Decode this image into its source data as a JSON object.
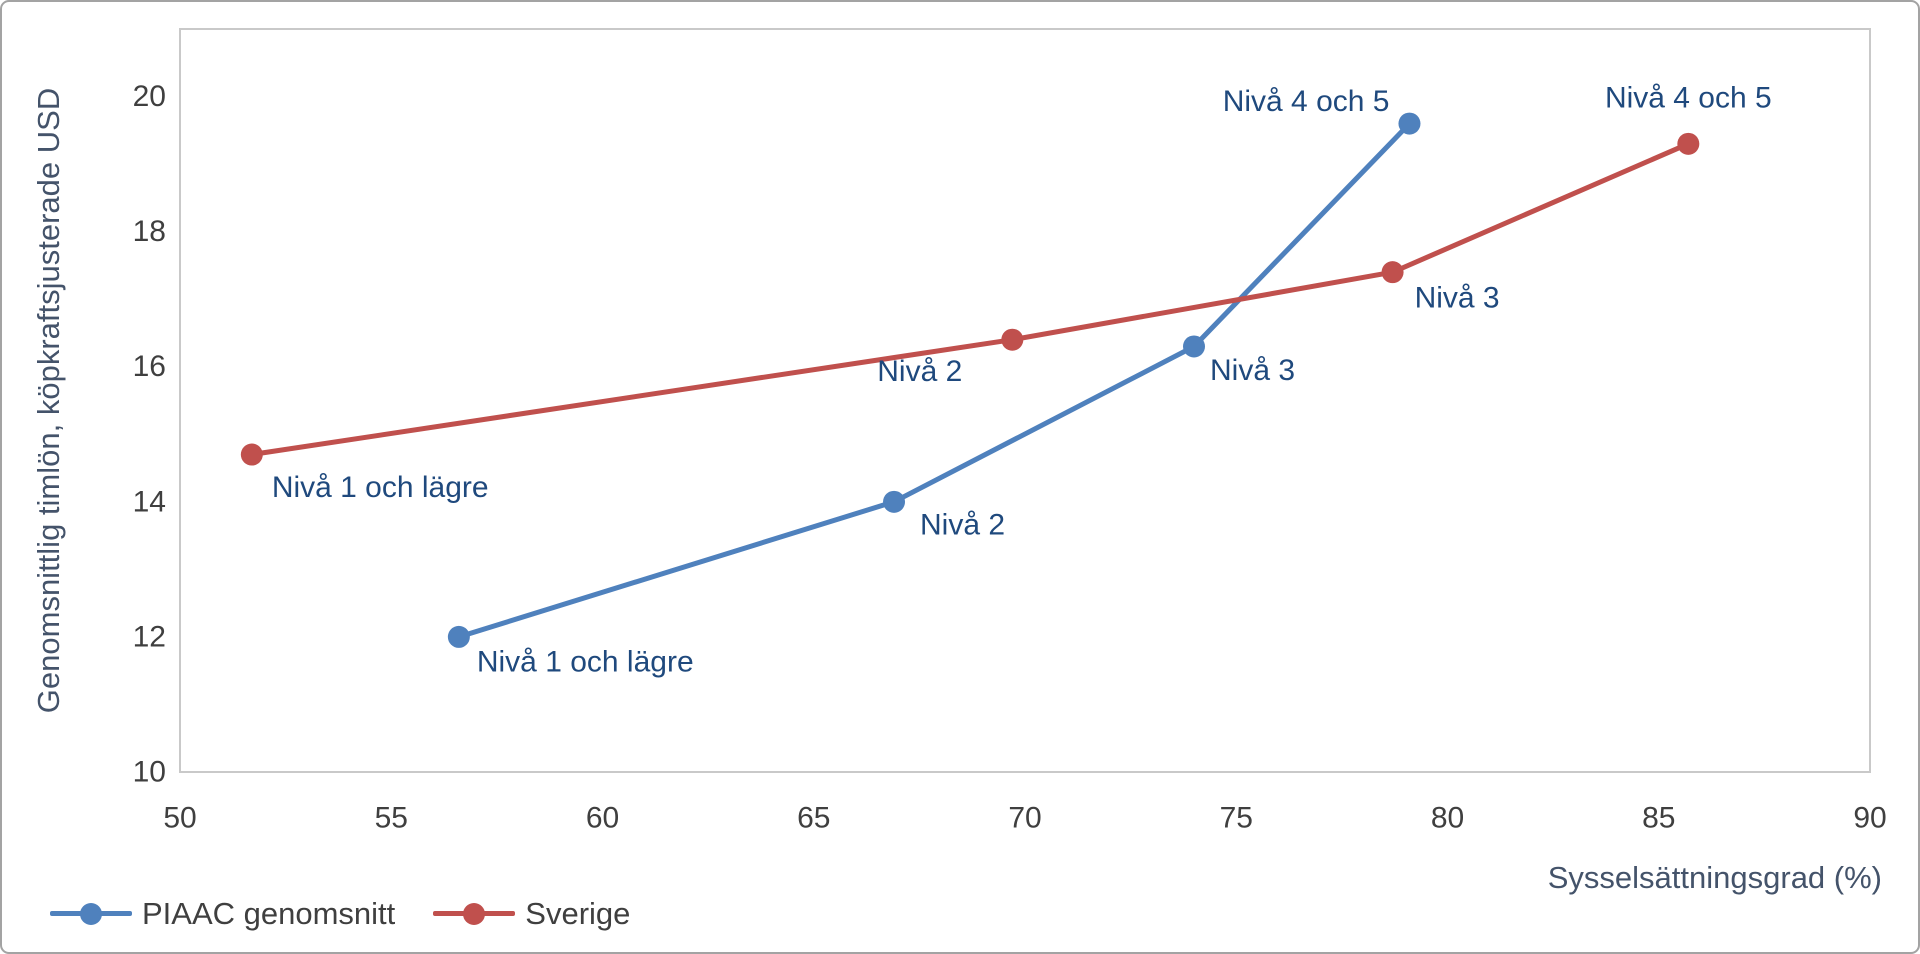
{
  "window": {
    "background": "#ffffff",
    "border_color": "#a3a3a3"
  },
  "chart_data": {
    "type": "line",
    "title": "",
    "xlabel": "Sysselsättningsgrad (%)",
    "ylabel": "Genomsnittlig timlön, köpkraftsjusterade USD",
    "xlim": [
      50,
      90
    ],
    "ylim": [
      10,
      21
    ],
    "x_ticks": [
      50,
      55,
      60,
      65,
      70,
      75,
      80,
      85,
      90
    ],
    "y_ticks": [
      10,
      12,
      14,
      16,
      18,
      20
    ],
    "grid": false,
    "legend_position": "bottom-left",
    "colors": {
      "plot_border": "#c9c9c9",
      "tick_label": "#3f3f3f",
      "axis_title": "#44536a",
      "data_label": "#1f497d",
      "legend_text": "#3f3f3f"
    },
    "series": [
      {
        "name": "PIAAC genomsnitt",
        "color": "#4f81bd",
        "points": [
          {
            "x": 56.6,
            "y": 12.0,
            "label": "Nivå 1 och lägre",
            "anchor": "start",
            "dx": 18,
            "dy": 25
          },
          {
            "x": 66.9,
            "y": 14.0,
            "label": "Nivå 2",
            "anchor": "start",
            "dx": 26,
            "dy": 23
          },
          {
            "x": 74.0,
            "y": 16.3,
            "label": "Nivå 3",
            "anchor": "start",
            "dx": 16,
            "dy": 24
          },
          {
            "x": 79.1,
            "y": 19.6,
            "label": "Nivå 4 och 5",
            "anchor": "end",
            "dx": -20,
            "dy": -22
          }
        ]
      },
      {
        "name": "Sverige",
        "color": "#c0504d",
        "points": [
          {
            "x": 51.7,
            "y": 14.7,
            "label": "Nivå 1 och lägre",
            "anchor": "start",
            "dx": 20,
            "dy": 33
          },
          {
            "x": 69.7,
            "y": 16.4,
            "label": "Nivå 2",
            "anchor": "end",
            "dx": -50,
            "dy": 32
          },
          {
            "x": 78.7,
            "y": 17.4,
            "label": "Nivå 3",
            "anchor": "start",
            "dx": 22,
            "dy": 26
          },
          {
            "x": 85.7,
            "y": 19.3,
            "label": "Nivå 4 och 5",
            "anchor": "middle",
            "dx": 0,
            "dy": -46
          }
        ]
      }
    ]
  }
}
